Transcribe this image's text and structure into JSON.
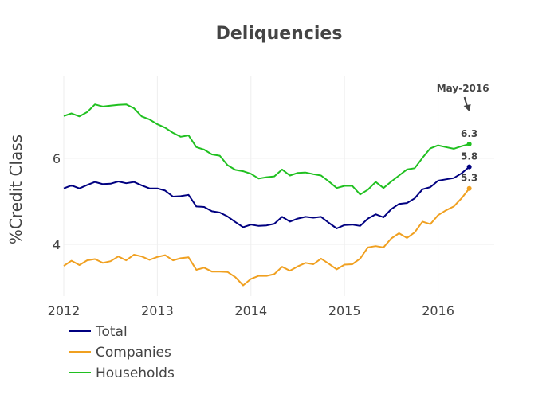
{
  "chart_data": {
    "type": "line",
    "title": "Deliquencies",
    "xlabel": "",
    "ylabel": "%Credit Class",
    "xlim": [
      2012.0,
      2016.6
    ],
    "ylim": [
      2.8,
      7.9
    ],
    "x_ticks": [
      2012,
      2013,
      2014,
      2015,
      2016
    ],
    "x_tick_labels": [
      "2012",
      "2013",
      "2014",
      "2015",
      "2016"
    ],
    "y_ticks": [
      4,
      6
    ],
    "y_tick_labels": [
      "4",
      "6"
    ],
    "grid": true,
    "legend_position": "bottom-left",
    "annotation": {
      "text": "May-2016",
      "x": 2016.333,
      "y": 6.3
    },
    "series": [
      {
        "name": "Total",
        "color": "#000080",
        "end_label": "5.8",
        "x": [
          2012.0,
          2012.083,
          2012.167,
          2012.25,
          2012.333,
          2012.417,
          2012.5,
          2012.583,
          2012.667,
          2012.75,
          2012.833,
          2012.917,
          2013.0,
          2013.083,
          2013.167,
          2013.25,
          2013.333,
          2013.417,
          2013.5,
          2013.583,
          2013.667,
          2013.75,
          2013.833,
          2013.917,
          2014.0,
          2014.083,
          2014.167,
          2014.25,
          2014.333,
          2014.417,
          2014.5,
          2014.583,
          2014.667,
          2014.75,
          2014.833,
          2014.917,
          2015.0,
          2015.083,
          2015.167,
          2015.25,
          2015.333,
          2015.417,
          2015.5,
          2015.583,
          2015.667,
          2015.75,
          2015.833,
          2015.917,
          2016.0,
          2016.083,
          2016.167,
          2016.25,
          2016.333
        ],
        "values": [
          5.3,
          5.37,
          5.3,
          5.38,
          5.45,
          5.4,
          5.41,
          5.46,
          5.42,
          5.45,
          5.37,
          5.3,
          5.3,
          5.25,
          5.11,
          5.12,
          5.15,
          4.88,
          4.87,
          4.77,
          4.74,
          4.65,
          4.52,
          4.4,
          4.46,
          4.43,
          4.44,
          4.48,
          4.64,
          4.53,
          4.6,
          4.64,
          4.62,
          4.64,
          4.5,
          4.37,
          4.45,
          4.46,
          4.43,
          4.6,
          4.7,
          4.63,
          4.82,
          4.94,
          4.96,
          5.07,
          5.28,
          5.33,
          5.48,
          5.51,
          5.54,
          5.65,
          5.8
        ]
      },
      {
        "name": "Companies",
        "color": "#f0a020",
        "end_label": "5.3",
        "x": [
          2012.0,
          2012.083,
          2012.167,
          2012.25,
          2012.333,
          2012.417,
          2012.5,
          2012.583,
          2012.667,
          2012.75,
          2012.833,
          2012.917,
          2013.0,
          2013.083,
          2013.167,
          2013.25,
          2013.333,
          2013.417,
          2013.5,
          2013.583,
          2013.667,
          2013.75,
          2013.833,
          2013.917,
          2014.0,
          2014.083,
          2014.167,
          2014.25,
          2014.333,
          2014.417,
          2014.5,
          2014.583,
          2014.667,
          2014.75,
          2014.833,
          2014.917,
          2015.0,
          2015.083,
          2015.167,
          2015.25,
          2015.333,
          2015.417,
          2015.5,
          2015.583,
          2015.667,
          2015.75,
          2015.833,
          2015.917,
          2016.0,
          2016.083,
          2016.167,
          2016.25,
          2016.333
        ],
        "values": [
          3.5,
          3.62,
          3.52,
          3.63,
          3.66,
          3.57,
          3.61,
          3.72,
          3.63,
          3.76,
          3.72,
          3.64,
          3.71,
          3.75,
          3.63,
          3.68,
          3.7,
          3.41,
          3.46,
          3.37,
          3.37,
          3.36,
          3.24,
          3.05,
          3.2,
          3.27,
          3.27,
          3.31,
          3.48,
          3.39,
          3.49,
          3.57,
          3.54,
          3.67,
          3.55,
          3.42,
          3.53,
          3.54,
          3.67,
          3.93,
          3.96,
          3.93,
          4.14,
          4.26,
          4.15,
          4.28,
          4.53,
          4.47,
          4.68,
          4.79,
          4.88,
          5.07,
          5.3
        ]
      },
      {
        "name": "Households",
        "color": "#20c020",
        "end_label": "6.3",
        "x": [
          2012.0,
          2012.083,
          2012.167,
          2012.25,
          2012.333,
          2012.417,
          2012.5,
          2012.583,
          2012.667,
          2012.75,
          2012.833,
          2012.917,
          2013.0,
          2013.083,
          2013.167,
          2013.25,
          2013.333,
          2013.417,
          2013.5,
          2013.583,
          2013.667,
          2013.75,
          2013.833,
          2013.917,
          2014.0,
          2014.083,
          2014.167,
          2014.25,
          2014.333,
          2014.417,
          2014.5,
          2014.583,
          2014.667,
          2014.75,
          2014.833,
          2014.917,
          2015.0,
          2015.083,
          2015.167,
          2015.25,
          2015.333,
          2015.417,
          2015.5,
          2015.583,
          2015.667,
          2015.75,
          2015.833,
          2015.917,
          2016.0,
          2016.083,
          2016.167,
          2016.25,
          2016.333
        ],
        "values": [
          6.98,
          7.04,
          6.97,
          7.07,
          7.25,
          7.2,
          7.22,
          7.24,
          7.25,
          7.16,
          6.97,
          6.9,
          6.79,
          6.71,
          6.59,
          6.5,
          6.53,
          6.26,
          6.2,
          6.09,
          6.06,
          5.84,
          5.73,
          5.7,
          5.64,
          5.53,
          5.56,
          5.58,
          5.74,
          5.6,
          5.66,
          5.67,
          5.63,
          5.6,
          5.46,
          5.31,
          5.36,
          5.36,
          5.16,
          5.27,
          5.45,
          5.31,
          5.46,
          5.6,
          5.74,
          5.77,
          6.01,
          6.23,
          6.3,
          6.26,
          6.22,
          6.28,
          6.33
        ]
      }
    ]
  }
}
